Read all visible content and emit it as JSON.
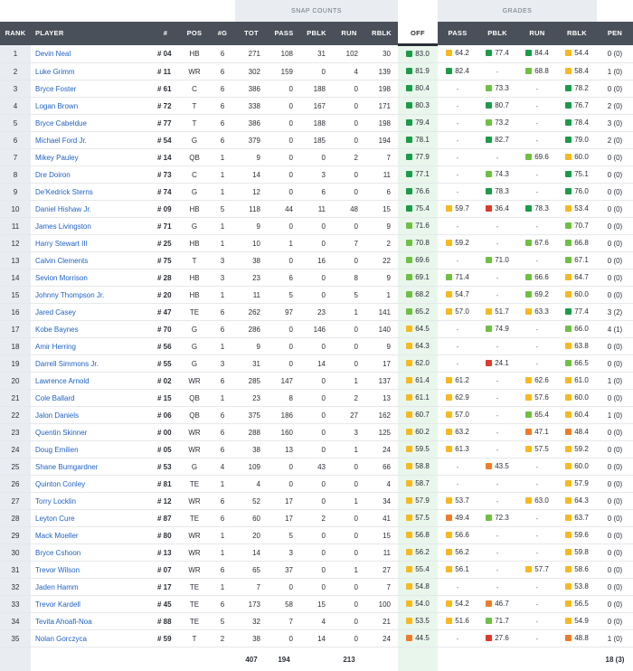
{
  "header": {
    "group_snap": "SNAP COUNTS",
    "group_grades": "GRADES",
    "cols": [
      "RANK",
      "PLAYER",
      "#",
      "POS",
      "#G",
      "TOT",
      "PASS",
      "PBLK",
      "RUN",
      "RBLK",
      "OFF",
      "PASS",
      "PBLK",
      "RUN",
      "RBLK",
      "PEN"
    ]
  },
  "grade_colors": {
    "g1": "#1a9c48",
    "g2": "#6fc042",
    "g3": "#f6b91f",
    "g4": "#ef7c28",
    "g5": "#df3a2b"
  },
  "rows": [
    [
      "1",
      "Devin Neal",
      "# 04",
      "HB",
      "6",
      "271",
      "108",
      "31",
      "102",
      "30",
      "83.0",
      "64.2",
      "77.4",
      "84.4",
      "54.4",
      "0 (0)"
    ],
    [
      "2",
      "Luke Grimm",
      "# 11",
      "WR",
      "6",
      "302",
      "159",
      "0",
      "4",
      "139",
      "81.9",
      "82.4",
      "-",
      "68.8",
      "58.4",
      "1 (0)"
    ],
    [
      "3",
      "Bryce Foster",
      "# 61",
      "C",
      "6",
      "386",
      "0",
      "188",
      "0",
      "198",
      "80.4",
      "-",
      "73.3",
      "-",
      "78.2",
      "0 (0)"
    ],
    [
      "4",
      "Logan Brown",
      "# 72",
      "T",
      "6",
      "338",
      "0",
      "167",
      "0",
      "171",
      "80.3",
      "-",
      "80.7",
      "-",
      "76.7",
      "2 (0)"
    ],
    [
      "5",
      "Bryce Cabeldue",
      "# 77",
      "T",
      "6",
      "386",
      "0",
      "188",
      "0",
      "198",
      "79.4",
      "-",
      "73.2",
      "-",
      "78.4",
      "3 (0)"
    ],
    [
      "6",
      "Michael Ford Jr.",
      "# 54",
      "G",
      "6",
      "379",
      "0",
      "185",
      "0",
      "194",
      "78.1",
      "-",
      "82.7",
      "-",
      "79.0",
      "2 (0)"
    ],
    [
      "7",
      "Mikey Pauley",
      "# 14",
      "QB",
      "1",
      "9",
      "0",
      "0",
      "2",
      "7",
      "77.9",
      "-",
      "-",
      "69.6",
      "60.0",
      "0 (0)"
    ],
    [
      "8",
      "Dre Doiron",
      "# 73",
      "C",
      "1",
      "14",
      "0",
      "3",
      "0",
      "11",
      "77.1",
      "-",
      "74.3",
      "-",
      "75.1",
      "0 (0)"
    ],
    [
      "9",
      "De'Kedrick Sterns",
      "# 74",
      "G",
      "1",
      "12",
      "0",
      "6",
      "0",
      "6",
      "76.6",
      "-",
      "78.3",
      "-",
      "76.0",
      "0 (0)"
    ],
    [
      "10",
      "Daniel Hishaw Jr.",
      "# 09",
      "HB",
      "5",
      "118",
      "44",
      "11",
      "48",
      "15",
      "75.4",
      "59.7",
      "36.4",
      "78.3",
      "53.4",
      "0 (0)"
    ],
    [
      "11",
      "James Livingston",
      "# 71",
      "G",
      "1",
      "9",
      "0",
      "0",
      "0",
      "9",
      "71.6",
      "-",
      "-",
      "-",
      "70.7",
      "0 (0)"
    ],
    [
      "12",
      "Harry Stewart III",
      "# 25",
      "HB",
      "1",
      "10",
      "1",
      "0",
      "7",
      "2",
      "70.8",
      "59.2",
      "-",
      "67.6",
      "66.8",
      "0 (0)"
    ],
    [
      "13",
      "Calvin Clements",
      "# 75",
      "T",
      "3",
      "38",
      "0",
      "16",
      "0",
      "22",
      "69.6",
      "-",
      "71.0",
      "-",
      "67.1",
      "0 (0)"
    ],
    [
      "14",
      "Sevion Morrison",
      "# 28",
      "HB",
      "3",
      "23",
      "6",
      "0",
      "8",
      "9",
      "69.1",
      "71.4",
      "-",
      "66.6",
      "64.7",
      "0 (0)"
    ],
    [
      "15",
      "Johnny Thompson Jr.",
      "# 20",
      "HB",
      "1",
      "11",
      "5",
      "0",
      "5",
      "1",
      "68.2",
      "54.7",
      "-",
      "69.2",
      "60.0",
      "0 (0)"
    ],
    [
      "16",
      "Jared Casey",
      "# 47",
      "TE",
      "6",
      "262",
      "97",
      "23",
      "1",
      "141",
      "65.2",
      "57.0",
      "51.7",
      "63.3",
      "77.4",
      "3 (2)"
    ],
    [
      "17",
      "Kobe Baynes",
      "# 70",
      "G",
      "6",
      "286",
      "0",
      "146",
      "0",
      "140",
      "64.5",
      "-",
      "74.9",
      "-",
      "66.0",
      "4 (1)"
    ],
    [
      "18",
      "Amir Herring",
      "# 56",
      "G",
      "1",
      "9",
      "0",
      "0",
      "0",
      "9",
      "64.3",
      "-",
      "-",
      "-",
      "63.8",
      "0 (0)"
    ],
    [
      "19",
      "Darrell Simmons Jr.",
      "# 55",
      "G",
      "3",
      "31",
      "0",
      "14",
      "0",
      "17",
      "62.0",
      "-",
      "24.1",
      "-",
      "66.5",
      "0 (0)"
    ],
    [
      "20",
      "Lawrence Arnold",
      "# 02",
      "WR",
      "6",
      "285",
      "147",
      "0",
      "1",
      "137",
      "61.4",
      "61.2",
      "-",
      "62.6",
      "61.0",
      "1 (0)"
    ],
    [
      "21",
      "Cole Ballard",
      "# 15",
      "QB",
      "1",
      "23",
      "8",
      "0",
      "2",
      "13",
      "61.1",
      "62.9",
      "-",
      "57.6",
      "60.0",
      "0 (0)"
    ],
    [
      "22",
      "Jalon Daniels",
      "# 06",
      "QB",
      "6",
      "375",
      "186",
      "0",
      "27",
      "162",
      "60.7",
      "57.0",
      "-",
      "65.4",
      "60.4",
      "1 (0)"
    ],
    [
      "23",
      "Quentin Skinner",
      "# 00",
      "WR",
      "6",
      "288",
      "160",
      "0",
      "3",
      "125",
      "60.2",
      "63.2",
      "-",
      "47.1",
      "48.4",
      "0 (0)"
    ],
    [
      "24",
      "Doug Emilien",
      "# 05",
      "WR",
      "6",
      "38",
      "13",
      "0",
      "1",
      "24",
      "59.5",
      "61.3",
      "-",
      "57.5",
      "59.2",
      "0 (0)"
    ],
    [
      "25",
      "Shane Bumgardner",
      "# 53",
      "G",
      "4",
      "109",
      "0",
      "43",
      "0",
      "66",
      "58.8",
      "-",
      "43.5",
      "-",
      "60.0",
      "0 (0)"
    ],
    [
      "26",
      "Quinton Conley",
      "# 81",
      "TE",
      "1",
      "4",
      "0",
      "0",
      "0",
      "4",
      "58.7",
      "-",
      "-",
      "-",
      "57.9",
      "0 (0)"
    ],
    [
      "27",
      "Torry Locklin",
      "# 12",
      "WR",
      "6",
      "52",
      "17",
      "0",
      "1",
      "34",
      "57.9",
      "53.7",
      "-",
      "63.0",
      "64.3",
      "0 (0)"
    ],
    [
      "28",
      "Leyton Cure",
      "# 87",
      "TE",
      "6",
      "60",
      "17",
      "2",
      "0",
      "41",
      "57.5",
      "49.4",
      "72.3",
      "-",
      "63.7",
      "0 (0)"
    ],
    [
      "29",
      "Mack Moeller",
      "# 80",
      "WR",
      "1",
      "20",
      "5",
      "0",
      "0",
      "15",
      "56.8",
      "56.6",
      "-",
      "-",
      "59.6",
      "0 (0)"
    ],
    [
      "30",
      "Bryce Cshoon",
      "# 13",
      "WR",
      "1",
      "14",
      "3",
      "0",
      "0",
      "11",
      "56.2",
      "56.2",
      "-",
      "-",
      "59.8",
      "0 (0)"
    ],
    [
      "31",
      "Trevor Wilson",
      "# 07",
      "WR",
      "6",
      "65",
      "37",
      "0",
      "1",
      "27",
      "55.4",
      "56.1",
      "-",
      "57.7",
      "58.6",
      "0 (0)"
    ],
    [
      "32",
      "Jaden Hamm",
      "# 17",
      "TE",
      "1",
      "7",
      "0",
      "0",
      "0",
      "7",
      "54.8",
      "-",
      "-",
      "-",
      "53.8",
      "0 (0)"
    ],
    [
      "33",
      "Trevor Kardell",
      "# 45",
      "TE",
      "6",
      "173",
      "58",
      "15",
      "0",
      "100",
      "54.0",
      "54.2",
      "46.7",
      "-",
      "56.5",
      "0 (0)"
    ],
    [
      "34",
      "Tevita Ahoafi-Noa",
      "# 88",
      "TE",
      "5",
      "32",
      "7",
      "4",
      "0",
      "21",
      "53.5",
      "51.6",
      "71.7",
      "-",
      "54.9",
      "0 (0)"
    ],
    [
      "35",
      "Nolan Gorczyca",
      "# 59",
      "T",
      "2",
      "38",
      "0",
      "14",
      "0",
      "24",
      "44.5",
      "-",
      "27.6",
      "-",
      "48.8",
      "1 (0)"
    ]
  ],
  "totals": {
    "tot": "407",
    "pass": "194",
    "run": "213",
    "pen": "18 (3)"
  }
}
